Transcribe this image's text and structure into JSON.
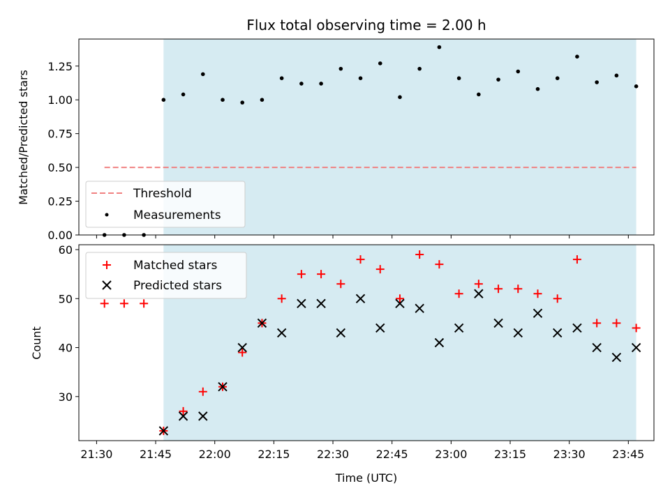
{
  "chart_data": [
    {
      "type": "scatter",
      "title": "Flux total observing time = 2.00 h",
      "ylabel": "Matched/Predicted stars",
      "xlabel": "",
      "ylim": [
        0,
        1.45
      ],
      "yticks": [
        "0.00",
        "0.25",
        "0.50",
        "0.75",
        "1.00",
        "1.25"
      ],
      "threshold": {
        "name": "Threshold",
        "value": 0.5,
        "x_start": "21:32",
        "x_end": "23:47",
        "color": "#f08080"
      },
      "series": [
        {
          "name": "Measurements",
          "color": "#000000",
          "x": [
            "21:32",
            "21:37",
            "21:42",
            "21:47",
            "21:52",
            "21:57",
            "22:02",
            "22:07",
            "22:12",
            "22:17",
            "22:22",
            "22:27",
            "22:32",
            "22:37",
            "22:42",
            "22:47",
            "22:52",
            "22:57",
            "23:02",
            "23:07",
            "23:12",
            "23:17",
            "23:22",
            "23:27",
            "23:32",
            "23:37",
            "23:42",
            "23:47"
          ],
          "y": [
            0.0,
            0.0,
            0.0,
            1.0,
            1.04,
            1.19,
            1.0,
            0.98,
            1.0,
            1.16,
            1.12,
            1.12,
            1.23,
            1.16,
            1.27,
            1.02,
            1.23,
            1.39,
            1.16,
            1.04,
            1.15,
            1.21,
            1.08,
            1.16,
            1.32,
            1.13,
            1.18,
            1.1
          ]
        }
      ],
      "shaded_region": {
        "x_start": "21:47",
        "x_end": "23:47",
        "color": "#add8e6"
      },
      "legend_position": "lower-left"
    },
    {
      "type": "scatter",
      "title": "",
      "ylabel": "Count",
      "xlabel": "Time (UTC)",
      "ylim": [
        21,
        61
      ],
      "yticks": [
        "30",
        "40",
        "50",
        "60"
      ],
      "xticks": [
        "21:30",
        "21:45",
        "22:00",
        "22:15",
        "22:30",
        "22:45",
        "23:00",
        "23:15",
        "23:30",
        "23:45"
      ],
      "series": [
        {
          "name": "Matched stars",
          "marker": "plus",
          "color": "#ff0000",
          "x": [
            "21:32",
            "21:37",
            "21:42",
            "21:47",
            "21:52",
            "21:57",
            "22:02",
            "22:07",
            "22:12",
            "22:17",
            "22:22",
            "22:27",
            "22:32",
            "22:37",
            "22:42",
            "22:47",
            "22:52",
            "22:57",
            "23:02",
            "23:07",
            "23:12",
            "23:17",
            "23:22",
            "23:27",
            "23:32",
            "23:37",
            "23:42",
            "23:47"
          ],
          "y": [
            49,
            49,
            49,
            23,
            27,
            31,
            32,
            39,
            45,
            50,
            55,
            55,
            53,
            58,
            56,
            50,
            59,
            57,
            51,
            53,
            52,
            52,
            51,
            50,
            58,
            45,
            45,
            44
          ]
        },
        {
          "name": "Predicted stars",
          "marker": "x",
          "color": "#000000",
          "x": [
            "21:47",
            "21:52",
            "21:57",
            "22:02",
            "22:07",
            "22:12",
            "22:17",
            "22:22",
            "22:27",
            "22:32",
            "22:37",
            "22:42",
            "22:47",
            "22:52",
            "22:57",
            "23:02",
            "23:07",
            "23:12",
            "23:17",
            "23:22",
            "23:27",
            "23:32",
            "23:37",
            "23:42",
            "23:47"
          ],
          "y": [
            23,
            26,
            26,
            32,
            40,
            45,
            43,
            49,
            49,
            43,
            50,
            44,
            49,
            48,
            41,
            44,
            51,
            45,
            43,
            47,
            43,
            44,
            40,
            38,
            40
          ]
        }
      ],
      "shaded_region": {
        "x_start": "21:47",
        "x_end": "23:47",
        "color": "#add8e6"
      },
      "legend_position": "upper-left"
    }
  ]
}
